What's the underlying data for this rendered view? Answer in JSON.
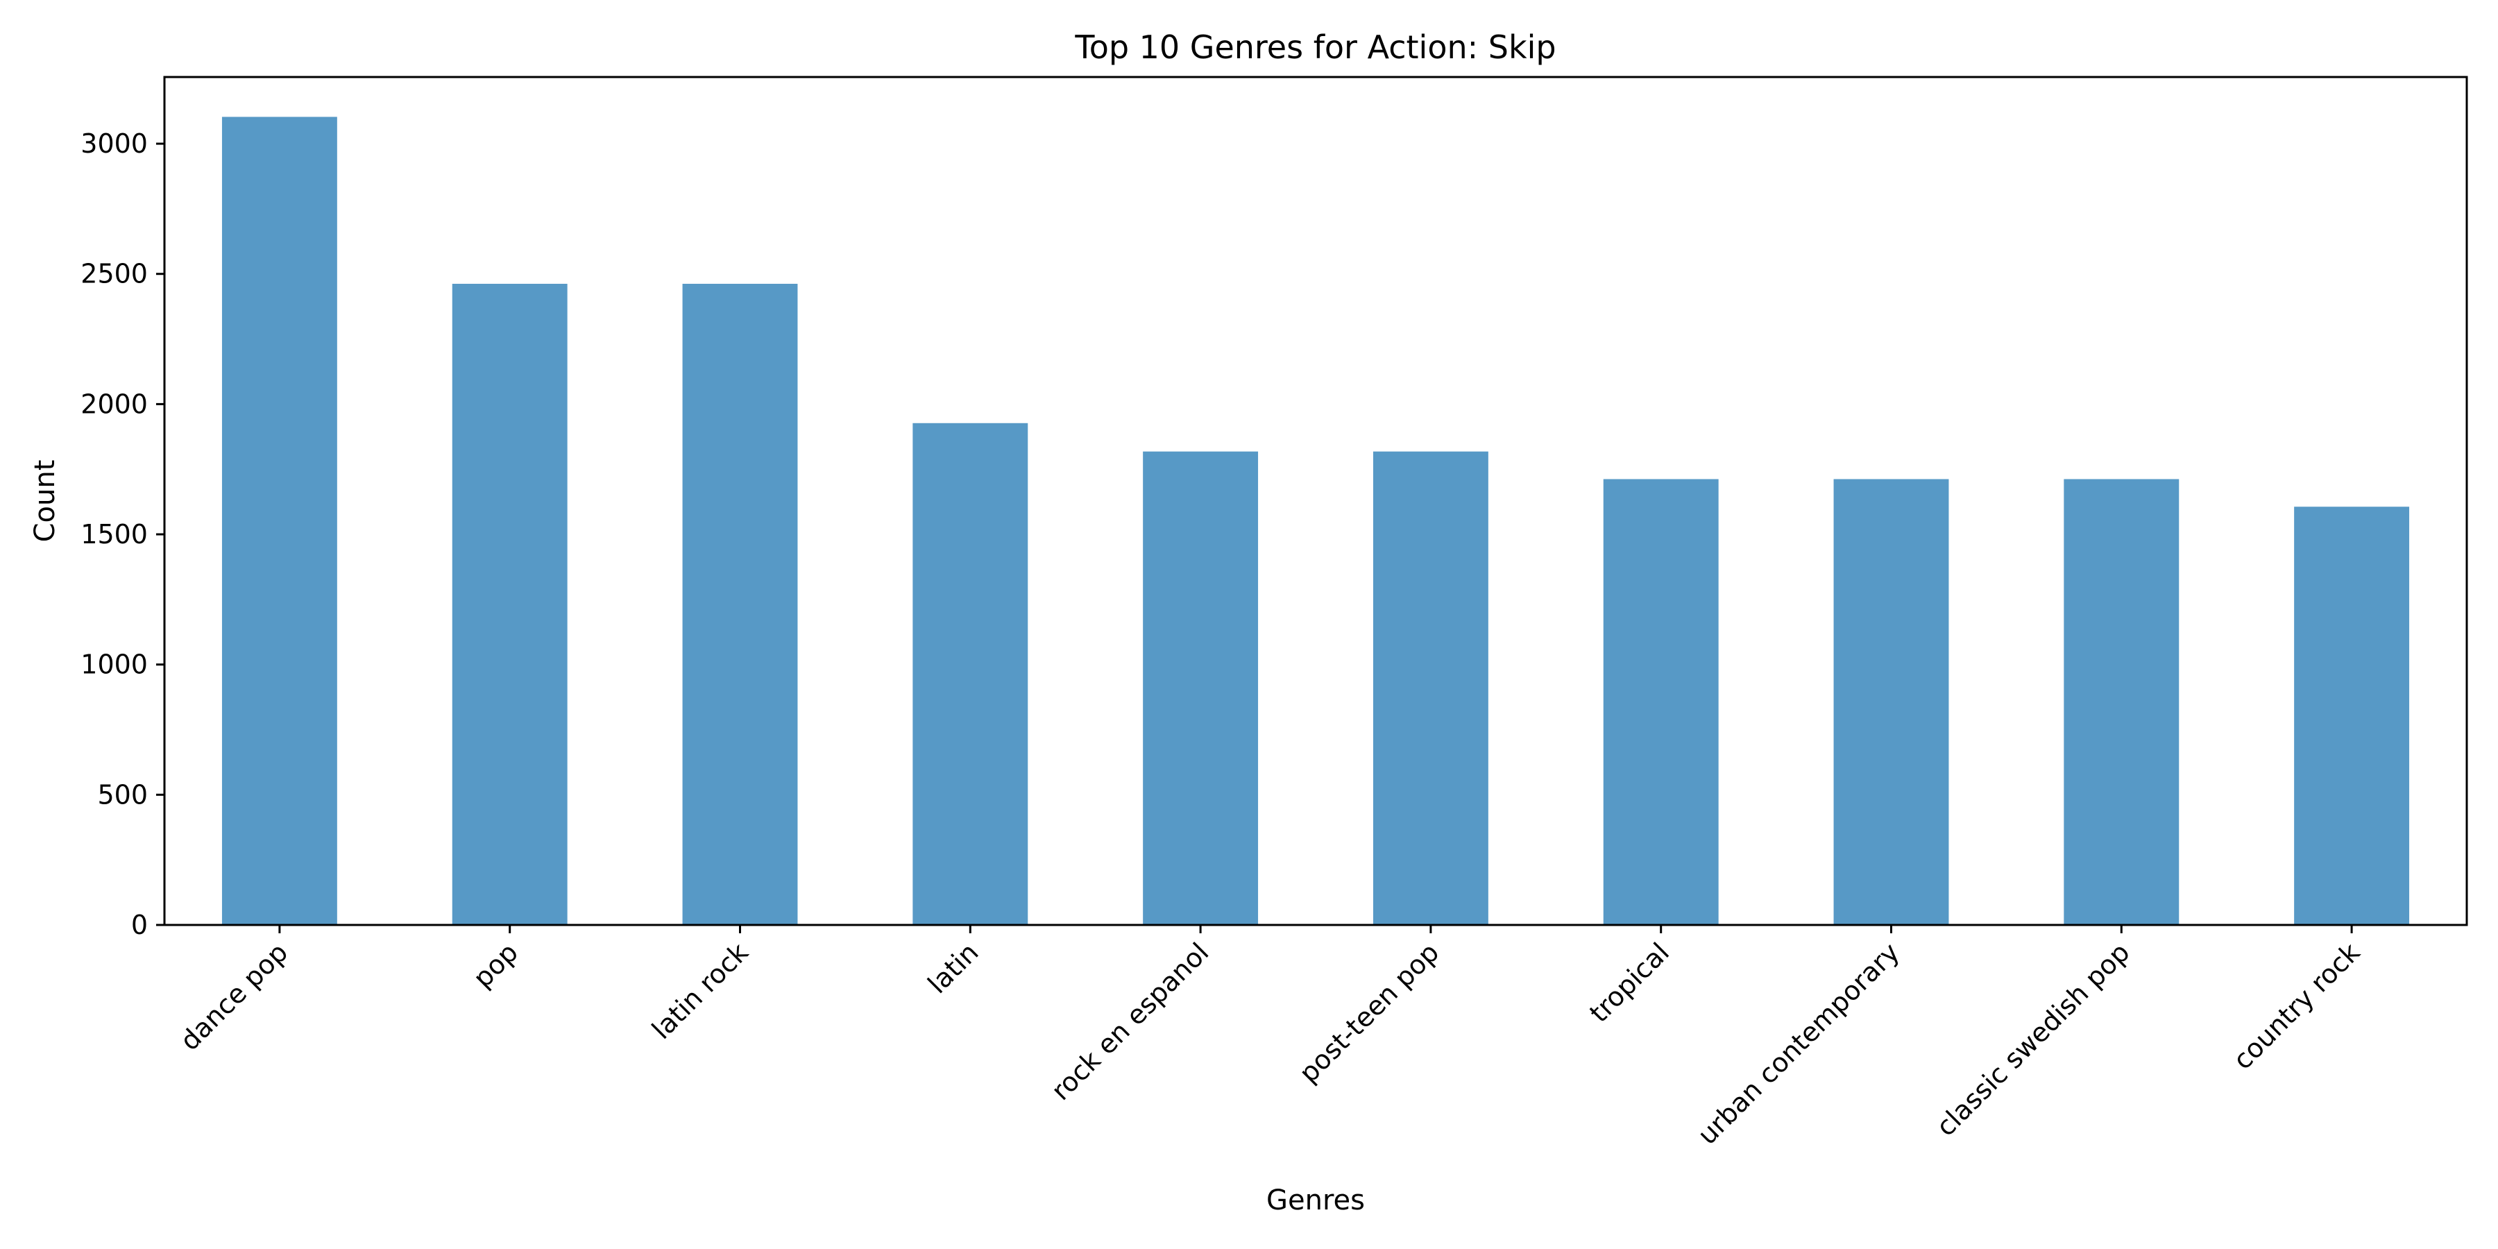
{
  "chart_data": {
    "type": "bar",
    "title": "Top 10 Genres for Action: Skip",
    "xlabel": "Genres",
    "ylabel": "Count",
    "categories": [
      "dance pop",
      "pop",
      "latin rock",
      "latin",
      "rock en espanol",
      "post-teen pop",
      "tropical",
      "urban contemporary",
      "classic swedish pop",
      "country rock"
    ],
    "values": [
      3103,
      2462,
      2462,
      1927,
      1818,
      1818,
      1712,
      1712,
      1712,
      1606
    ],
    "ylim": [
      0,
      3256
    ],
    "yticks": [
      0,
      500,
      1000,
      1500,
      2000,
      2500,
      3000
    ],
    "bar_color": "#5799c6",
    "grid": false,
    "legend": "none"
  }
}
